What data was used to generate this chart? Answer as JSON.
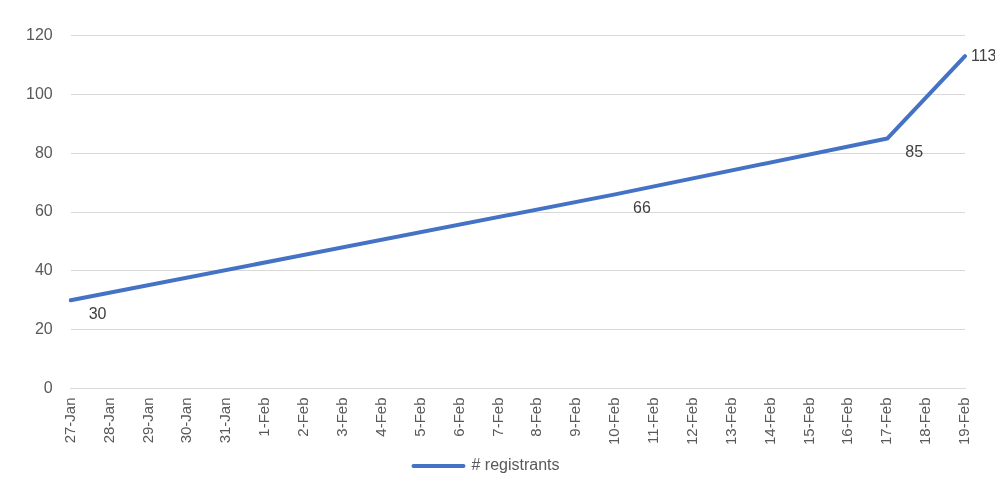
{
  "chart_data": {
    "type": "line",
    "categories": [
      "27-Jan",
      "28-Jan",
      "29-Jan",
      "30-Jan",
      "31-Jan",
      "1-Feb",
      "2-Feb",
      "3-Feb",
      "4-Feb",
      "5-Feb",
      "6-Feb",
      "7-Feb",
      "8-Feb",
      "9-Feb",
      "10-Feb",
      "11-Feb",
      "12-Feb",
      "13-Feb",
      "14-Feb",
      "15-Feb",
      "16-Feb",
      "17-Feb",
      "18-Feb",
      "19-Feb"
    ],
    "series": [
      {
        "name": "# registrants",
        "color": "#4472c4",
        "values": [
          30,
          null,
          null,
          null,
          null,
          null,
          null,
          null,
          null,
          null,
          null,
          null,
          null,
          null,
          66,
          null,
          null,
          null,
          null,
          null,
          null,
          85,
          null,
          113
        ]
      }
    ],
    "ylim": [
      0,
      120
    ],
    "yticks": [
      0,
      20,
      40,
      60,
      80,
      100,
      120
    ],
    "grid": "y",
    "legend": "bottom",
    "marker": "none",
    "line_style": "solid",
    "data_labels": true
  }
}
